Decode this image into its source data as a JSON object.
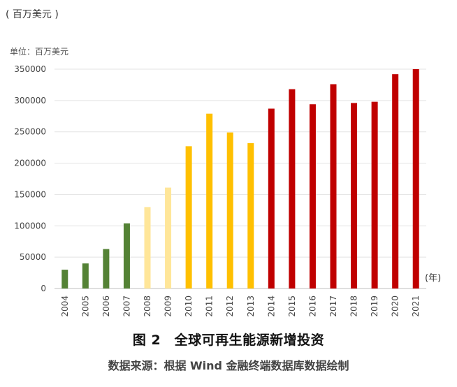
{
  "header": {
    "unit_label": "( 百万美元 )"
  },
  "chart_data": {
    "type": "bar",
    "unit_label": "单位：百万美元",
    "x_unit": "(年)",
    "categories": [
      "2004",
      "2005",
      "2006",
      "2007",
      "2008",
      "2009",
      "2010",
      "2011",
      "2012",
      "2013",
      "2014",
      "2015",
      "2016",
      "2017",
      "2018",
      "2019",
      "2020",
      "2021"
    ],
    "values": [
      30000,
      40000,
      63000,
      104000,
      130000,
      161000,
      227000,
      279000,
      249000,
      232000,
      287000,
      318000,
      294000,
      326000,
      296000,
      298000,
      342000,
      350000
    ],
    "colors": [
      "#548235",
      "#548235",
      "#548235",
      "#548235",
      "#FFE699",
      "#FFE699",
      "#FFC000",
      "#FFC000",
      "#FFC000",
      "#FFC000",
      "#C00000",
      "#C00000",
      "#C00000",
      "#C00000",
      "#C00000",
      "#C00000",
      "#C00000",
      "#C00000"
    ],
    "ylim": [
      0,
      350000
    ],
    "yticks": [
      0,
      50000,
      100000,
      150000,
      200000,
      250000,
      300000,
      350000
    ],
    "grid": true
  },
  "caption": {
    "figure": "图 2　全球可再生能源新增投资",
    "source": "数据来源：根据 Wind 金融终端数据库数据绘制"
  }
}
